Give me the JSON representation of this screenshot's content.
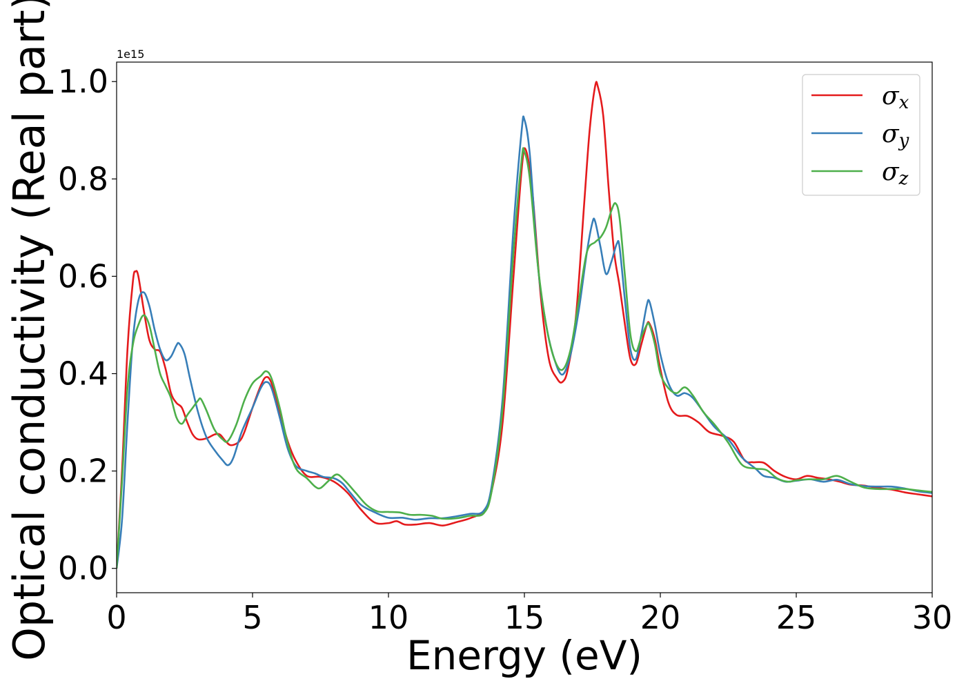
{
  "chart_data": {
    "type": "line",
    "title": "",
    "xlabel": "Energy (eV)",
    "ylabel": "Optical conductivity (Real part)",
    "y_offset_text": "1e15",
    "y_scale": 1000000000000000.0,
    "xlim": [
      0,
      30
    ],
    "ylim": [
      -0.05,
      1.04
    ],
    "xticks": [
      0,
      5,
      10,
      15,
      20,
      25,
      30
    ],
    "xtick_labels": [
      "0",
      "5",
      "10",
      "15",
      "20",
      "25",
      "30"
    ],
    "yticks": [
      0.0,
      0.2,
      0.4,
      0.6,
      0.8,
      1.0
    ],
    "ytick_labels": [
      "0.0",
      "0.2",
      "0.4",
      "0.6",
      "0.8",
      "1.0"
    ],
    "grid": false,
    "legend_position": "upper-right",
    "series": [
      {
        "name": "σx",
        "legend_base": "σ",
        "legend_sub": "x",
        "color": "#e41a1c",
        "points": [
          [
            0,
            0.0
          ],
          [
            0.2,
            0.2
          ],
          [
            0.4,
            0.45
          ],
          [
            0.6,
            0.59
          ],
          [
            0.7,
            0.61
          ],
          [
            0.8,
            0.6
          ],
          [
            1.0,
            0.53
          ],
          [
            1.2,
            0.47
          ],
          [
            1.4,
            0.45
          ],
          [
            1.6,
            0.445
          ],
          [
            1.8,
            0.41
          ],
          [
            2.0,
            0.36
          ],
          [
            2.2,
            0.34
          ],
          [
            2.4,
            0.33
          ],
          [
            2.6,
            0.3
          ],
          [
            2.8,
            0.275
          ],
          [
            3.0,
            0.265
          ],
          [
            3.3,
            0.267
          ],
          [
            3.6,
            0.275
          ],
          [
            3.8,
            0.275
          ],
          [
            4.0,
            0.262
          ],
          [
            4.2,
            0.253
          ],
          [
            4.5,
            0.26
          ],
          [
            4.7,
            0.28
          ],
          [
            5.0,
            0.33
          ],
          [
            5.3,
            0.375
          ],
          [
            5.5,
            0.393
          ],
          [
            5.7,
            0.38
          ],
          [
            6.0,
            0.32
          ],
          [
            6.3,
            0.26
          ],
          [
            6.6,
            0.22
          ],
          [
            7.0,
            0.19
          ],
          [
            7.5,
            0.188
          ],
          [
            8.0,
            0.178
          ],
          [
            8.5,
            0.155
          ],
          [
            9.0,
            0.12
          ],
          [
            9.5,
            0.094
          ],
          [
            10.0,
            0.093
          ],
          [
            10.3,
            0.097
          ],
          [
            10.6,
            0.09
          ],
          [
            11.0,
            0.09
          ],
          [
            11.5,
            0.093
          ],
          [
            12.0,
            0.088
          ],
          [
            12.5,
            0.095
          ],
          [
            13.0,
            0.103
          ],
          [
            13.5,
            0.118
          ],
          [
            13.8,
            0.16
          ],
          [
            14.2,
            0.3
          ],
          [
            14.6,
            0.6
          ],
          [
            14.9,
            0.82
          ],
          [
            15.05,
            0.86
          ],
          [
            15.3,
            0.77
          ],
          [
            15.6,
            0.56
          ],
          [
            15.9,
            0.43
          ],
          [
            16.2,
            0.39
          ],
          [
            16.4,
            0.383
          ],
          [
            16.6,
            0.41
          ],
          [
            16.9,
            0.52
          ],
          [
            17.2,
            0.75
          ],
          [
            17.4,
            0.9
          ],
          [
            17.6,
            0.99
          ],
          [
            17.7,
            0.99
          ],
          [
            17.9,
            0.93
          ],
          [
            18.1,
            0.78
          ],
          [
            18.3,
            0.65
          ],
          [
            18.5,
            0.58
          ],
          [
            18.7,
            0.5
          ],
          [
            18.9,
            0.43
          ],
          [
            19.1,
            0.42
          ],
          [
            19.3,
            0.46
          ],
          [
            19.5,
            0.5
          ],
          [
            19.6,
            0.503
          ],
          [
            19.8,
            0.47
          ],
          [
            20.0,
            0.41
          ],
          [
            20.3,
            0.34
          ],
          [
            20.6,
            0.315
          ],
          [
            21.0,
            0.313
          ],
          [
            21.4,
            0.3
          ],
          [
            21.8,
            0.28
          ],
          [
            22.3,
            0.272
          ],
          [
            22.7,
            0.26
          ],
          [
            23.1,
            0.222
          ],
          [
            23.4,
            0.218
          ],
          [
            23.8,
            0.217
          ],
          [
            24.2,
            0.2
          ],
          [
            24.6,
            0.188
          ],
          [
            25.0,
            0.183
          ],
          [
            25.4,
            0.19
          ],
          [
            25.8,
            0.186
          ],
          [
            26.2,
            0.183
          ],
          [
            26.6,
            0.178
          ],
          [
            27.0,
            0.172
          ],
          [
            27.5,
            0.17
          ],
          [
            28.0,
            0.165
          ],
          [
            28.5,
            0.162
          ],
          [
            29.0,
            0.156
          ],
          [
            29.5,
            0.152
          ],
          [
            30.0,
            0.148
          ]
        ]
      },
      {
        "name": "σy",
        "legend_base": "σ",
        "legend_sub": "y",
        "color": "#377eb8",
        "points": [
          [
            0,
            0.0
          ],
          [
            0.2,
            0.1
          ],
          [
            0.4,
            0.3
          ],
          [
            0.6,
            0.47
          ],
          [
            0.8,
            0.55
          ],
          [
            1.0,
            0.567
          ],
          [
            1.2,
            0.54
          ],
          [
            1.4,
            0.49
          ],
          [
            1.6,
            0.45
          ],
          [
            1.8,
            0.428
          ],
          [
            2.0,
            0.435
          ],
          [
            2.2,
            0.458
          ],
          [
            2.3,
            0.462
          ],
          [
            2.5,
            0.44
          ],
          [
            2.7,
            0.39
          ],
          [
            3.0,
            0.32
          ],
          [
            3.3,
            0.27
          ],
          [
            3.6,
            0.243
          ],
          [
            3.9,
            0.222
          ],
          [
            4.1,
            0.212
          ],
          [
            4.3,
            0.228
          ],
          [
            4.6,
            0.28
          ],
          [
            5.0,
            0.33
          ],
          [
            5.3,
            0.37
          ],
          [
            5.5,
            0.383
          ],
          [
            5.7,
            0.37
          ],
          [
            6.0,
            0.31
          ],
          [
            6.3,
            0.245
          ],
          [
            6.6,
            0.21
          ],
          [
            7.0,
            0.2
          ],
          [
            7.3,
            0.195
          ],
          [
            7.6,
            0.188
          ],
          [
            8.0,
            0.185
          ],
          [
            8.3,
            0.175
          ],
          [
            8.6,
            0.155
          ],
          [
            9.0,
            0.13
          ],
          [
            9.5,
            0.115
          ],
          [
            10.0,
            0.104
          ],
          [
            10.5,
            0.104
          ],
          [
            11.0,
            0.1
          ],
          [
            11.5,
            0.103
          ],
          [
            12.0,
            0.103
          ],
          [
            12.5,
            0.107
          ],
          [
            13.0,
            0.112
          ],
          [
            13.5,
            0.118
          ],
          [
            13.8,
            0.17
          ],
          [
            14.2,
            0.35
          ],
          [
            14.6,
            0.7
          ],
          [
            14.9,
            0.9
          ],
          [
            15.0,
            0.922
          ],
          [
            15.2,
            0.85
          ],
          [
            15.5,
            0.62
          ],
          [
            15.8,
            0.5
          ],
          [
            16.1,
            0.43
          ],
          [
            16.4,
            0.398
          ],
          [
            16.7,
            0.44
          ],
          [
            17.0,
            0.53
          ],
          [
            17.3,
            0.65
          ],
          [
            17.5,
            0.71
          ],
          [
            17.6,
            0.713
          ],
          [
            17.8,
            0.66
          ],
          [
            18.0,
            0.605
          ],
          [
            18.2,
            0.63
          ],
          [
            18.4,
            0.667
          ],
          [
            18.5,
            0.66
          ],
          [
            18.7,
            0.55
          ],
          [
            18.9,
            0.45
          ],
          [
            19.1,
            0.43
          ],
          [
            19.3,
            0.48
          ],
          [
            19.5,
            0.54
          ],
          [
            19.6,
            0.548
          ],
          [
            19.8,
            0.5
          ],
          [
            20.0,
            0.44
          ],
          [
            20.3,
            0.38
          ],
          [
            20.6,
            0.355
          ],
          [
            20.9,
            0.36
          ],
          [
            21.2,
            0.35
          ],
          [
            21.6,
            0.32
          ],
          [
            22.0,
            0.29
          ],
          [
            22.5,
            0.265
          ],
          [
            23.0,
            0.228
          ],
          [
            23.5,
            0.205
          ],
          [
            23.8,
            0.19
          ],
          [
            24.2,
            0.186
          ],
          [
            24.6,
            0.178
          ],
          [
            25.0,
            0.18
          ],
          [
            25.5,
            0.183
          ],
          [
            26.0,
            0.178
          ],
          [
            26.5,
            0.182
          ],
          [
            27.0,
            0.173
          ],
          [
            27.5,
            0.169
          ],
          [
            28.0,
            0.168
          ],
          [
            28.5,
            0.168
          ],
          [
            29.0,
            0.164
          ],
          [
            29.5,
            0.158
          ],
          [
            30.0,
            0.155
          ]
        ]
      },
      {
        "name": "σz",
        "legend_base": "σ",
        "legend_sub": "z",
        "color": "#4daf4a",
        "points": [
          [
            0,
            0.0
          ],
          [
            0.2,
            0.18
          ],
          [
            0.4,
            0.37
          ],
          [
            0.6,
            0.46
          ],
          [
            0.8,
            0.5
          ],
          [
            1.0,
            0.52
          ],
          [
            1.2,
            0.5
          ],
          [
            1.4,
            0.45
          ],
          [
            1.6,
            0.4
          ],
          [
            1.8,
            0.375
          ],
          [
            2.0,
            0.35
          ],
          [
            2.2,
            0.31
          ],
          [
            2.4,
            0.297
          ],
          [
            2.6,
            0.315
          ],
          [
            2.8,
            0.33
          ],
          [
            3.0,
            0.345
          ],
          [
            3.1,
            0.348
          ],
          [
            3.3,
            0.325
          ],
          [
            3.6,
            0.285
          ],
          [
            3.9,
            0.265
          ],
          [
            4.1,
            0.262
          ],
          [
            4.4,
            0.295
          ],
          [
            4.7,
            0.345
          ],
          [
            5.0,
            0.38
          ],
          [
            5.3,
            0.395
          ],
          [
            5.5,
            0.405
          ],
          [
            5.7,
            0.39
          ],
          [
            6.0,
            0.33
          ],
          [
            6.3,
            0.255
          ],
          [
            6.6,
            0.205
          ],
          [
            7.0,
            0.185
          ],
          [
            7.3,
            0.168
          ],
          [
            7.5,
            0.165
          ],
          [
            7.8,
            0.18
          ],
          [
            8.1,
            0.193
          ],
          [
            8.4,
            0.18
          ],
          [
            8.8,
            0.155
          ],
          [
            9.2,
            0.13
          ],
          [
            9.6,
            0.117
          ],
          [
            10.0,
            0.116
          ],
          [
            10.4,
            0.115
          ],
          [
            10.8,
            0.11
          ],
          [
            11.2,
            0.11
          ],
          [
            11.6,
            0.108
          ],
          [
            12.0,
            0.102
          ],
          [
            12.5,
            0.103
          ],
          [
            13.0,
            0.108
          ],
          [
            13.5,
            0.113
          ],
          [
            13.8,
            0.16
          ],
          [
            14.2,
            0.33
          ],
          [
            14.6,
            0.65
          ],
          [
            14.9,
            0.84
          ],
          [
            15.0,
            0.856
          ],
          [
            15.2,
            0.8
          ],
          [
            15.5,
            0.62
          ],
          [
            15.8,
            0.5
          ],
          [
            16.1,
            0.43
          ],
          [
            16.4,
            0.408
          ],
          [
            16.7,
            0.45
          ],
          [
            17.0,
            0.55
          ],
          [
            17.3,
            0.65
          ],
          [
            17.6,
            0.67
          ],
          [
            17.8,
            0.68
          ],
          [
            18.0,
            0.7
          ],
          [
            18.2,
            0.735
          ],
          [
            18.35,
            0.75
          ],
          [
            18.5,
            0.72
          ],
          [
            18.7,
            0.6
          ],
          [
            18.9,
            0.48
          ],
          [
            19.1,
            0.446
          ],
          [
            19.3,
            0.475
          ],
          [
            19.5,
            0.5
          ],
          [
            19.6,
            0.5
          ],
          [
            19.8,
            0.46
          ],
          [
            20.0,
            0.4
          ],
          [
            20.3,
            0.37
          ],
          [
            20.6,
            0.36
          ],
          [
            20.9,
            0.372
          ],
          [
            21.2,
            0.355
          ],
          [
            21.6,
            0.32
          ],
          [
            22.0,
            0.295
          ],
          [
            22.5,
            0.258
          ],
          [
            23.0,
            0.213
          ],
          [
            23.5,
            0.205
          ],
          [
            23.9,
            0.202
          ],
          [
            24.3,
            0.185
          ],
          [
            24.7,
            0.178
          ],
          [
            25.0,
            0.181
          ],
          [
            25.5,
            0.183
          ],
          [
            26.0,
            0.183
          ],
          [
            26.5,
            0.19
          ],
          [
            27.0,
            0.178
          ],
          [
            27.5,
            0.166
          ],
          [
            28.0,
            0.163
          ],
          [
            28.5,
            0.163
          ],
          [
            29.0,
            0.163
          ],
          [
            29.5,
            0.16
          ],
          [
            30.0,
            0.157
          ]
        ]
      }
    ]
  }
}
